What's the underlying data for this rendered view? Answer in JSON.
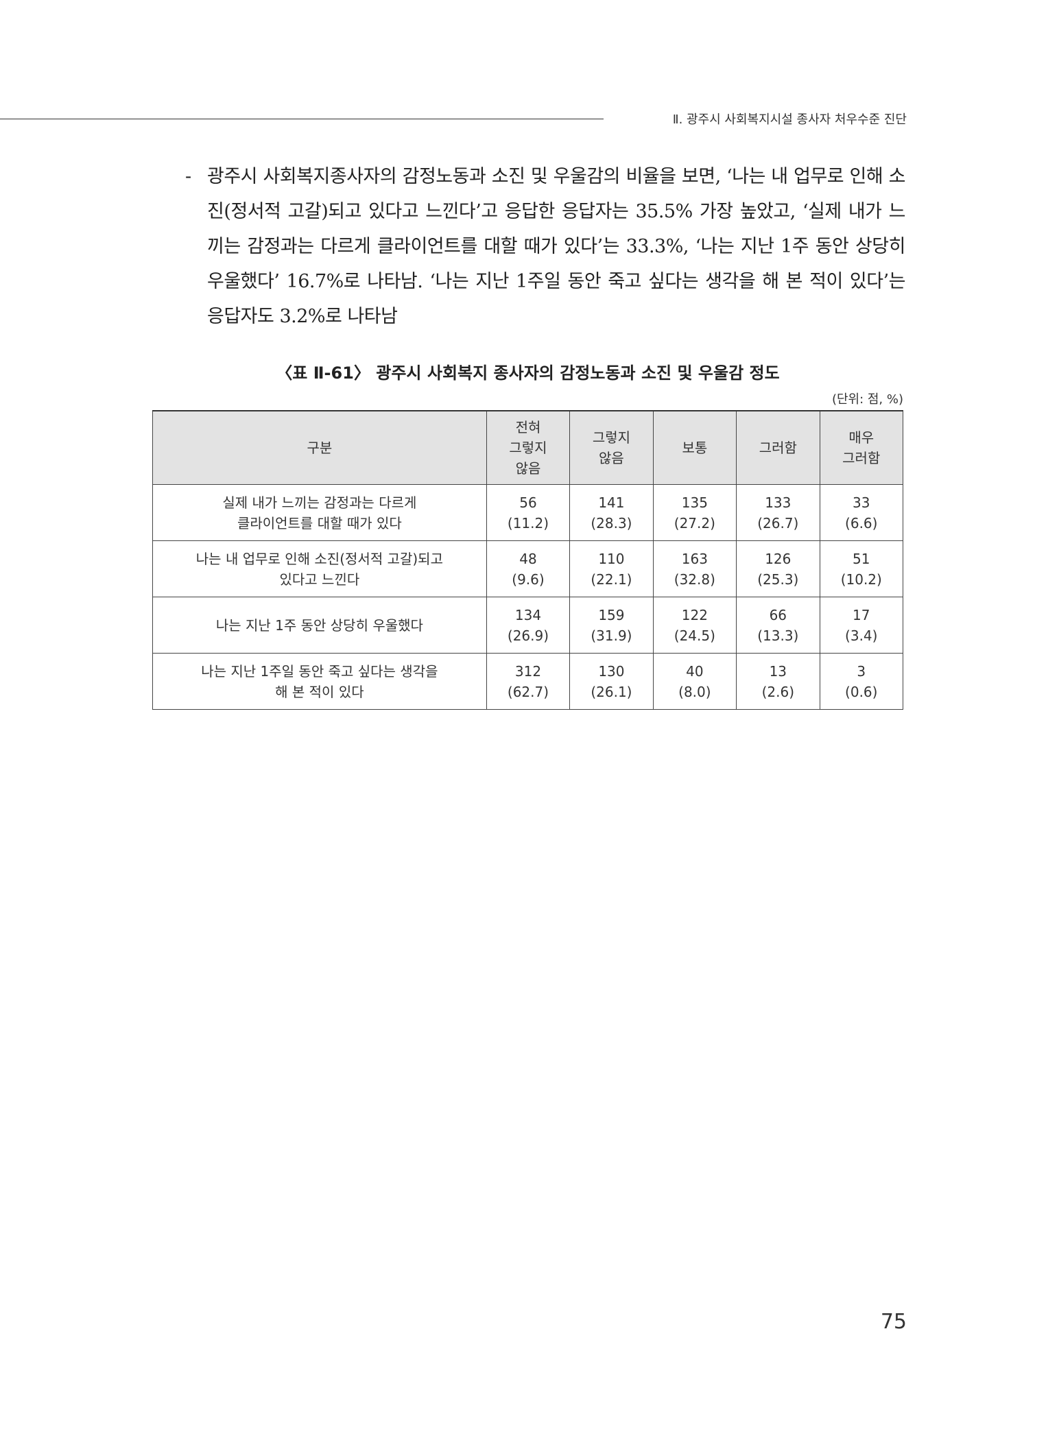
{
  "running_header": "Ⅱ. 광주시 사회복지시설 종사자 처우수준 진단",
  "body": {
    "bullet": "-",
    "text": "광주시 사회복지종사자의 감정노동과 소진 및 우울감의 비율을 보면, ‘나는 내 업무로 인해 소진(정서적 고갈)되고 있다고 느낀다’고 응답한 응답자는 35.5% 가장 높았고, ‘실제 내가 느끼는 감정과는 다르게 클라이언트를 대할 때가 있다’는 33.3%, ‘나는 지난 1주 동안 상당히 우울했다’ 16.7%로 나타남. ‘나는 지난 1주일 동안 죽고 싶다는 생각을 해 본 적이 있다’는 응답자도 3.2%로 나타남"
  },
  "table": {
    "caption": "〈표 Ⅱ-61〉 광주시 사회복지 종사자의 감정노동과 소진 및 우울감 정도",
    "unit": "(단위: 점, %)",
    "headers": [
      [
        "구분"
      ],
      [
        "전혀",
        "그렇지",
        "않음"
      ],
      [
        "그렇지",
        "않음"
      ],
      [
        "보통"
      ],
      [
        "그러함"
      ],
      [
        "매우",
        "그러함"
      ]
    ],
    "rows": [
      {
        "label": [
          "실제 내가 느끼는 감정과는 다르게",
          "클라이언트를 대할 때가 있다"
        ],
        "cells": [
          [
            "56",
            "(11.2)"
          ],
          [
            "141",
            "(28.3)"
          ],
          [
            "135",
            "(27.2)"
          ],
          [
            "133",
            "(26.7)"
          ],
          [
            "33",
            "(6.6)"
          ]
        ]
      },
      {
        "label": [
          "나는 내 업무로 인해 소진(정서적 고갈)되고",
          "있다고 느낀다"
        ],
        "cells": [
          [
            "48",
            "(9.6)"
          ],
          [
            "110",
            "(22.1)"
          ],
          [
            "163",
            "(32.8)"
          ],
          [
            "126",
            "(25.3)"
          ],
          [
            "51",
            "(10.2)"
          ]
        ]
      },
      {
        "label": [
          "나는 지난 1주 동안 상당히 우울했다"
        ],
        "cells": [
          [
            "134",
            "(26.9)"
          ],
          [
            "159",
            "(31.9)"
          ],
          [
            "122",
            "(24.5)"
          ],
          [
            "66",
            "(13.3)"
          ],
          [
            "17",
            "(3.4)"
          ]
        ]
      },
      {
        "label": [
          "나는 지난 1주일 동안 죽고 싶다는 생각을",
          "해 본 적이 있다"
        ],
        "cells": [
          [
            "312",
            "(62.7)"
          ],
          [
            "130",
            "(26.1)"
          ],
          [
            "40",
            "(8.0)"
          ],
          [
            "13",
            "(2.6)"
          ],
          [
            "3",
            "(0.6)"
          ]
        ]
      }
    ]
  },
  "page_number": "75"
}
